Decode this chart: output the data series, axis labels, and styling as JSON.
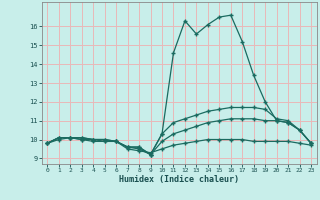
{
  "xlabel": "Humidex (Indice chaleur)",
  "bg_color": "#c8eeea",
  "grid_color": "#e8b8b8",
  "line_color": "#1a6b60",
  "xlim": [
    -0.5,
    23.5
  ],
  "ylim": [
    8.7,
    17.3
  ],
  "yticks": [
    9,
    10,
    11,
    12,
    13,
    14,
    15,
    16
  ],
  "xticks": [
    0,
    1,
    2,
    3,
    4,
    5,
    6,
    7,
    8,
    9,
    10,
    11,
    12,
    13,
    14,
    15,
    16,
    17,
    18,
    19,
    20,
    21,
    22,
    23
  ],
  "line1_y": [
    9.8,
    10.1,
    10.1,
    10.1,
    10.0,
    10.0,
    9.9,
    9.6,
    9.6,
    9.2,
    10.3,
    14.6,
    16.3,
    15.6,
    16.1,
    16.5,
    16.6,
    15.2,
    13.4,
    12.0,
    11.0,
    10.9,
    10.5,
    9.8
  ],
  "line2_y": [
    9.8,
    10.1,
    10.1,
    10.1,
    10.0,
    10.0,
    9.9,
    9.6,
    9.6,
    9.2,
    10.3,
    10.9,
    11.1,
    11.3,
    11.5,
    11.6,
    11.7,
    11.7,
    11.7,
    11.6,
    11.1,
    11.0,
    10.5,
    9.8
  ],
  "line3_y": [
    9.8,
    10.1,
    10.1,
    10.0,
    10.0,
    9.9,
    9.9,
    9.6,
    9.5,
    9.2,
    9.9,
    10.3,
    10.5,
    10.7,
    10.9,
    11.0,
    11.1,
    11.1,
    11.1,
    11.0,
    11.0,
    10.9,
    10.5,
    9.8
  ],
  "line4_y": [
    9.8,
    10.0,
    10.1,
    10.0,
    9.9,
    9.9,
    9.9,
    9.5,
    9.4,
    9.3,
    9.5,
    9.7,
    9.8,
    9.9,
    10.0,
    10.0,
    10.0,
    10.0,
    9.9,
    9.9,
    9.9,
    9.9,
    9.8,
    9.7
  ]
}
